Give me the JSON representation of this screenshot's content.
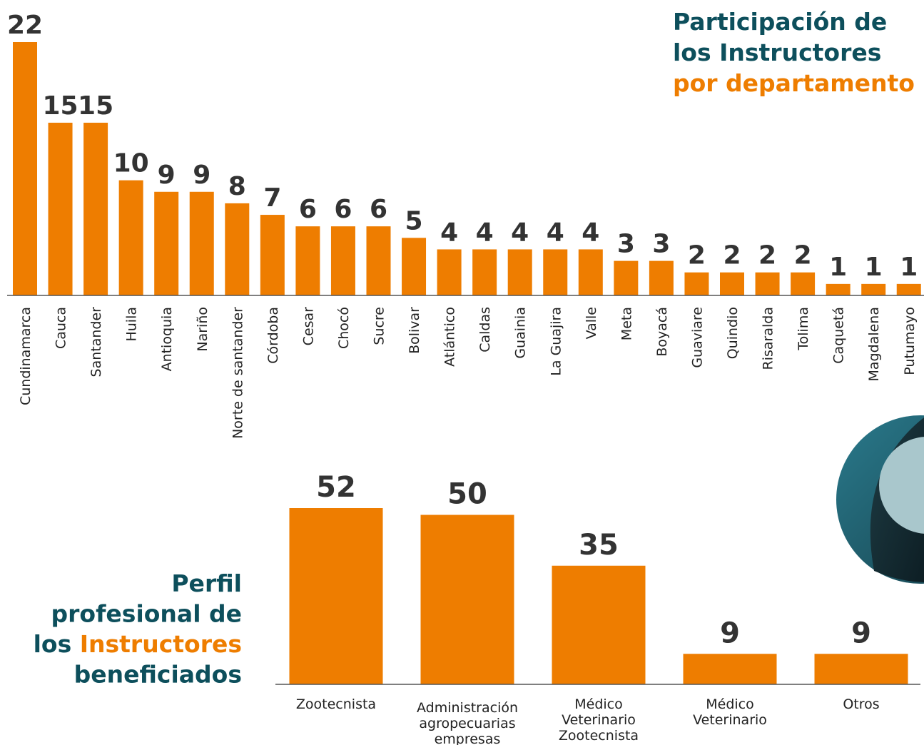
{
  "chart_data": [
    {
      "type": "bar",
      "title": [
        [
          {
            "text": "Participación de",
            "color": "#0d4f5c"
          }
        ],
        [
          {
            "text": "los Instructores",
            "color": "#0d4f5c"
          }
        ],
        [
          {
            "text": "por departamento",
            "color": "#ee7d00"
          }
        ]
      ],
      "categories": [
        "Cundinamarca",
        "Cauca",
        "Santander",
        "Huila",
        "Antioquia",
        "Nariño",
        "Norte de santander",
        "Córdoba",
        "Cesar",
        "Chocó",
        "Sucre",
        "Bolivar",
        "Atlántico",
        "Caldas",
        "Guainia",
        "La Guajira",
        "Valle",
        "Meta",
        "Boyacá",
        "Guaviare",
        "Quindio",
        "Risaralda",
        "Tolima",
        "Caquetá",
        "Magdalena",
        "Putumayo"
      ],
      "values": [
        22,
        15,
        15,
        10,
        9,
        9,
        8,
        7,
        6,
        6,
        6,
        5,
        4,
        4,
        4,
        4,
        4,
        3,
        3,
        2,
        2,
        2,
        2,
        1,
        1,
        1
      ],
      "color": "#ee7d00",
      "ylim": [
        0,
        22
      ]
    },
    {
      "type": "bar",
      "title": [
        [
          {
            "text": "Perfil",
            "color": "#0d4f5c"
          }
        ],
        [
          {
            "text": "profesional de",
            "color": "#0d4f5c"
          }
        ],
        [
          {
            "text": "los ",
            "color": "#0d4f5c"
          },
          {
            "text": "Instructores",
            "color": "#ee7d00"
          }
        ],
        [
          {
            "text": "beneficiados",
            "color": "#0d4f5c"
          }
        ]
      ],
      "categories": [
        "Zootecnista",
        "Administración agropecuarias empresas",
        "Médico Veterinario Zootecnista",
        "Médico Veterinario",
        "Otros"
      ],
      "values": [
        52,
        50,
        35,
        9,
        9
      ],
      "color": "#ee7d00",
      "ylim": [
        0,
        52
      ]
    }
  ]
}
